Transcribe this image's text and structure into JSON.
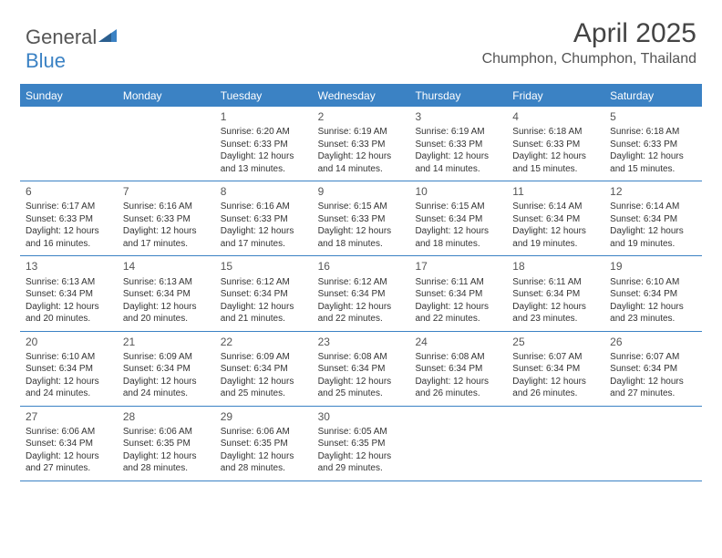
{
  "brand": {
    "part1": "General",
    "part2": "Blue"
  },
  "title": "April 2025",
  "location": "Chumphon, Chumphon, Thailand",
  "colors": {
    "accent": "#3b82c4",
    "text": "#333333",
    "muted": "#555555",
    "background": "#ffffff"
  },
  "weekdays": [
    "Sunday",
    "Monday",
    "Tuesday",
    "Wednesday",
    "Thursday",
    "Friday",
    "Saturday"
  ],
  "weeks": [
    [
      null,
      null,
      {
        "n": "1",
        "sunrise": "6:20 AM",
        "sunset": "6:33 PM",
        "daylight": "12 hours and 13 minutes."
      },
      {
        "n": "2",
        "sunrise": "6:19 AM",
        "sunset": "6:33 PM",
        "daylight": "12 hours and 14 minutes."
      },
      {
        "n": "3",
        "sunrise": "6:19 AM",
        "sunset": "6:33 PM",
        "daylight": "12 hours and 14 minutes."
      },
      {
        "n": "4",
        "sunrise": "6:18 AM",
        "sunset": "6:33 PM",
        "daylight": "12 hours and 15 minutes."
      },
      {
        "n": "5",
        "sunrise": "6:18 AM",
        "sunset": "6:33 PM",
        "daylight": "12 hours and 15 minutes."
      }
    ],
    [
      {
        "n": "6",
        "sunrise": "6:17 AM",
        "sunset": "6:33 PM",
        "daylight": "12 hours and 16 minutes."
      },
      {
        "n": "7",
        "sunrise": "6:16 AM",
        "sunset": "6:33 PM",
        "daylight": "12 hours and 17 minutes."
      },
      {
        "n": "8",
        "sunrise": "6:16 AM",
        "sunset": "6:33 PM",
        "daylight": "12 hours and 17 minutes."
      },
      {
        "n": "9",
        "sunrise": "6:15 AM",
        "sunset": "6:33 PM",
        "daylight": "12 hours and 18 minutes."
      },
      {
        "n": "10",
        "sunrise": "6:15 AM",
        "sunset": "6:34 PM",
        "daylight": "12 hours and 18 minutes."
      },
      {
        "n": "11",
        "sunrise": "6:14 AM",
        "sunset": "6:34 PM",
        "daylight": "12 hours and 19 minutes."
      },
      {
        "n": "12",
        "sunrise": "6:14 AM",
        "sunset": "6:34 PM",
        "daylight": "12 hours and 19 minutes."
      }
    ],
    [
      {
        "n": "13",
        "sunrise": "6:13 AM",
        "sunset": "6:34 PM",
        "daylight": "12 hours and 20 minutes."
      },
      {
        "n": "14",
        "sunrise": "6:13 AM",
        "sunset": "6:34 PM",
        "daylight": "12 hours and 20 minutes."
      },
      {
        "n": "15",
        "sunrise": "6:12 AM",
        "sunset": "6:34 PM",
        "daylight": "12 hours and 21 minutes."
      },
      {
        "n": "16",
        "sunrise": "6:12 AM",
        "sunset": "6:34 PM",
        "daylight": "12 hours and 22 minutes."
      },
      {
        "n": "17",
        "sunrise": "6:11 AM",
        "sunset": "6:34 PM",
        "daylight": "12 hours and 22 minutes."
      },
      {
        "n": "18",
        "sunrise": "6:11 AM",
        "sunset": "6:34 PM",
        "daylight": "12 hours and 23 minutes."
      },
      {
        "n": "19",
        "sunrise": "6:10 AM",
        "sunset": "6:34 PM",
        "daylight": "12 hours and 23 minutes."
      }
    ],
    [
      {
        "n": "20",
        "sunrise": "6:10 AM",
        "sunset": "6:34 PM",
        "daylight": "12 hours and 24 minutes."
      },
      {
        "n": "21",
        "sunrise": "6:09 AM",
        "sunset": "6:34 PM",
        "daylight": "12 hours and 24 minutes."
      },
      {
        "n": "22",
        "sunrise": "6:09 AM",
        "sunset": "6:34 PM",
        "daylight": "12 hours and 25 minutes."
      },
      {
        "n": "23",
        "sunrise": "6:08 AM",
        "sunset": "6:34 PM",
        "daylight": "12 hours and 25 minutes."
      },
      {
        "n": "24",
        "sunrise": "6:08 AM",
        "sunset": "6:34 PM",
        "daylight": "12 hours and 26 minutes."
      },
      {
        "n": "25",
        "sunrise": "6:07 AM",
        "sunset": "6:34 PM",
        "daylight": "12 hours and 26 minutes."
      },
      {
        "n": "26",
        "sunrise": "6:07 AM",
        "sunset": "6:34 PM",
        "daylight": "12 hours and 27 minutes."
      }
    ],
    [
      {
        "n": "27",
        "sunrise": "6:06 AM",
        "sunset": "6:34 PM",
        "daylight": "12 hours and 27 minutes."
      },
      {
        "n": "28",
        "sunrise": "6:06 AM",
        "sunset": "6:35 PM",
        "daylight": "12 hours and 28 minutes."
      },
      {
        "n": "29",
        "sunrise": "6:06 AM",
        "sunset": "6:35 PM",
        "daylight": "12 hours and 28 minutes."
      },
      {
        "n": "30",
        "sunrise": "6:05 AM",
        "sunset": "6:35 PM",
        "daylight": "12 hours and 29 minutes."
      },
      null,
      null,
      null
    ]
  ],
  "labels": {
    "sunrise": "Sunrise:",
    "sunset": "Sunset:",
    "daylight": "Daylight:"
  }
}
